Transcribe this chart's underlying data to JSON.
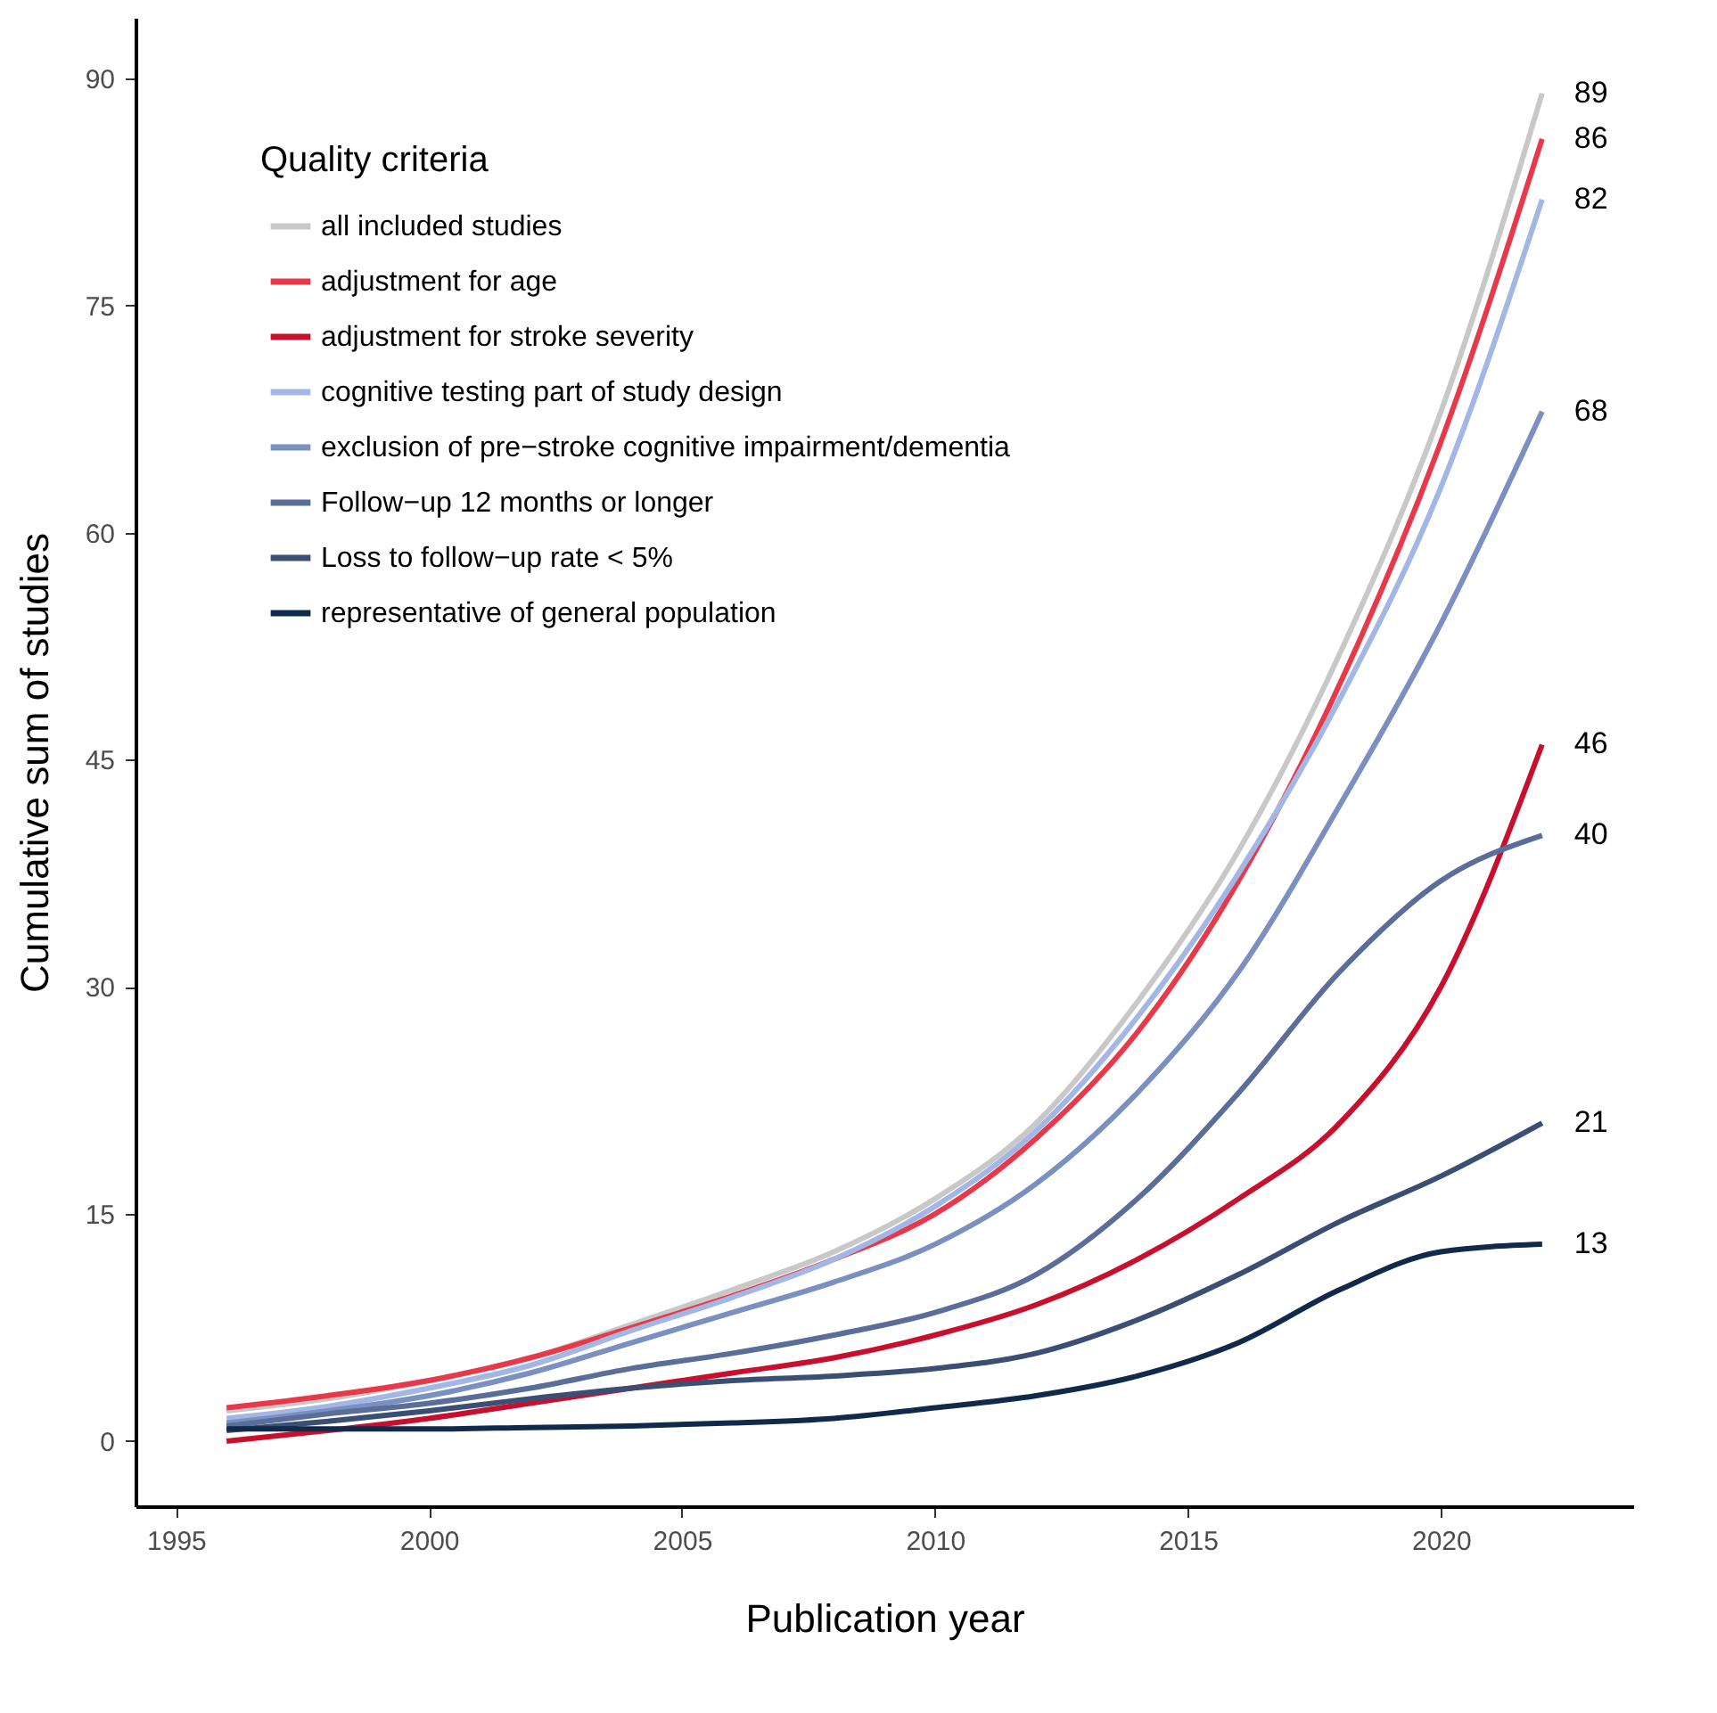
{
  "chart_data": {
    "type": "line",
    "xlabel": "Publication year",
    "ylabel": "Cumulative sum of studies",
    "legend_title": "Quality criteria",
    "legend": "top left",
    "x": [
      1996,
      1998,
      2000,
      2002,
      2004,
      2006,
      2008,
      2010,
      2012,
      2014,
      2016,
      2018,
      2020,
      2022
    ],
    "xlim": [
      1994.2,
      2023.8
    ],
    "xticks": [
      1995,
      2000,
      2005,
      2010,
      2015,
      2020
    ],
    "ylim": [
      -4.3,
      94
    ],
    "yticks": [
      0,
      15,
      30,
      45,
      60,
      75,
      90
    ],
    "series": [
      {
        "name": "all included studies",
        "color": "#c8c8c8",
        "values": [
          2,
          2.8,
          4,
          5.5,
          7.7,
          10,
          12.5,
          16,
          21,
          29,
          39,
          52,
          68,
          89
        ],
        "value_labels": [
          null,
          null,
          null,
          null,
          null,
          null,
          null,
          null,
          null,
          null,
          null,
          null,
          null,
          "89"
        ]
      },
      {
        "name": "adjustment for age",
        "color": "#e8394a",
        "values": [
          2.2,
          3,
          4,
          5.5,
          7.5,
          9.6,
          12,
          15,
          20,
          27,
          37,
          50,
          66,
          86
        ],
        "value_labels": [
          null,
          null,
          null,
          null,
          null,
          null,
          null,
          null,
          null,
          null,
          null,
          null,
          null,
          "86"
        ]
      },
      {
        "name": "adjustment for stroke severity",
        "color": "#c8102e",
        "values": [
          0,
          0.7,
          1.5,
          2.5,
          3.5,
          4.5,
          5.5,
          7,
          9,
          12,
          16,
          21,
          30,
          46
        ],
        "value_labels": [
          null,
          null,
          null,
          null,
          null,
          null,
          null,
          null,
          null,
          null,
          null,
          null,
          null,
          "46"
        ]
      },
      {
        "name": "cognitive testing part of study design",
        "color": "#a2b7e6",
        "values": [
          1.5,
          2.3,
          3.5,
          5,
          7.3,
          9.5,
          12,
          15.5,
          20.5,
          28,
          37.5,
          49,
          63,
          82
        ],
        "value_labels": [
          null,
          null,
          null,
          null,
          null,
          null,
          null,
          null,
          null,
          null,
          null,
          null,
          null,
          "82"
        ]
      },
      {
        "name": "exclusion of pre−stroke cognitive impairment/dementia",
        "color": "#7a90c0",
        "values": [
          1.2,
          2,
          3,
          4.5,
          6.5,
          8.5,
          10.5,
          13,
          17,
          23,
          31,
          42,
          54,
          68
        ],
        "value_labels": [
          null,
          null,
          null,
          null,
          null,
          null,
          null,
          null,
          null,
          null,
          null,
          null,
          null,
          "68"
        ]
      },
      {
        "name": "Follow−up 12 months or longer",
        "color": "#5a6e99",
        "values": [
          1,
          1.8,
          2.5,
          3.5,
          4.8,
          5.8,
          7,
          8.5,
          11,
          16,
          23,
          31,
          37,
          40
        ],
        "value_labels": [
          null,
          null,
          null,
          null,
          null,
          null,
          null,
          null,
          null,
          null,
          null,
          null,
          null,
          "40"
        ]
      },
      {
        "name": "Loss to follow−up rate < 5%",
        "color": "#3b4f75",
        "values": [
          0.7,
          1.3,
          2,
          2.8,
          3.5,
          4,
          4.3,
          4.8,
          5.8,
          8,
          11,
          14.5,
          17.5,
          21
        ],
        "value_labels": [
          null,
          null,
          null,
          null,
          null,
          null,
          null,
          null,
          null,
          null,
          null,
          null,
          null,
          "21"
        ]
      },
      {
        "name": "representative of general population",
        "color": "#0f2a4a",
        "values": [
          0.8,
          0.8,
          0.8,
          0.9,
          1,
          1.2,
          1.5,
          2.2,
          3,
          4.3,
          6.5,
          10,
          12.5,
          13
        ],
        "value_labels": [
          null,
          null,
          null,
          null,
          null,
          null,
          null,
          null,
          null,
          null,
          null,
          null,
          null,
          "13"
        ]
      }
    ]
  }
}
